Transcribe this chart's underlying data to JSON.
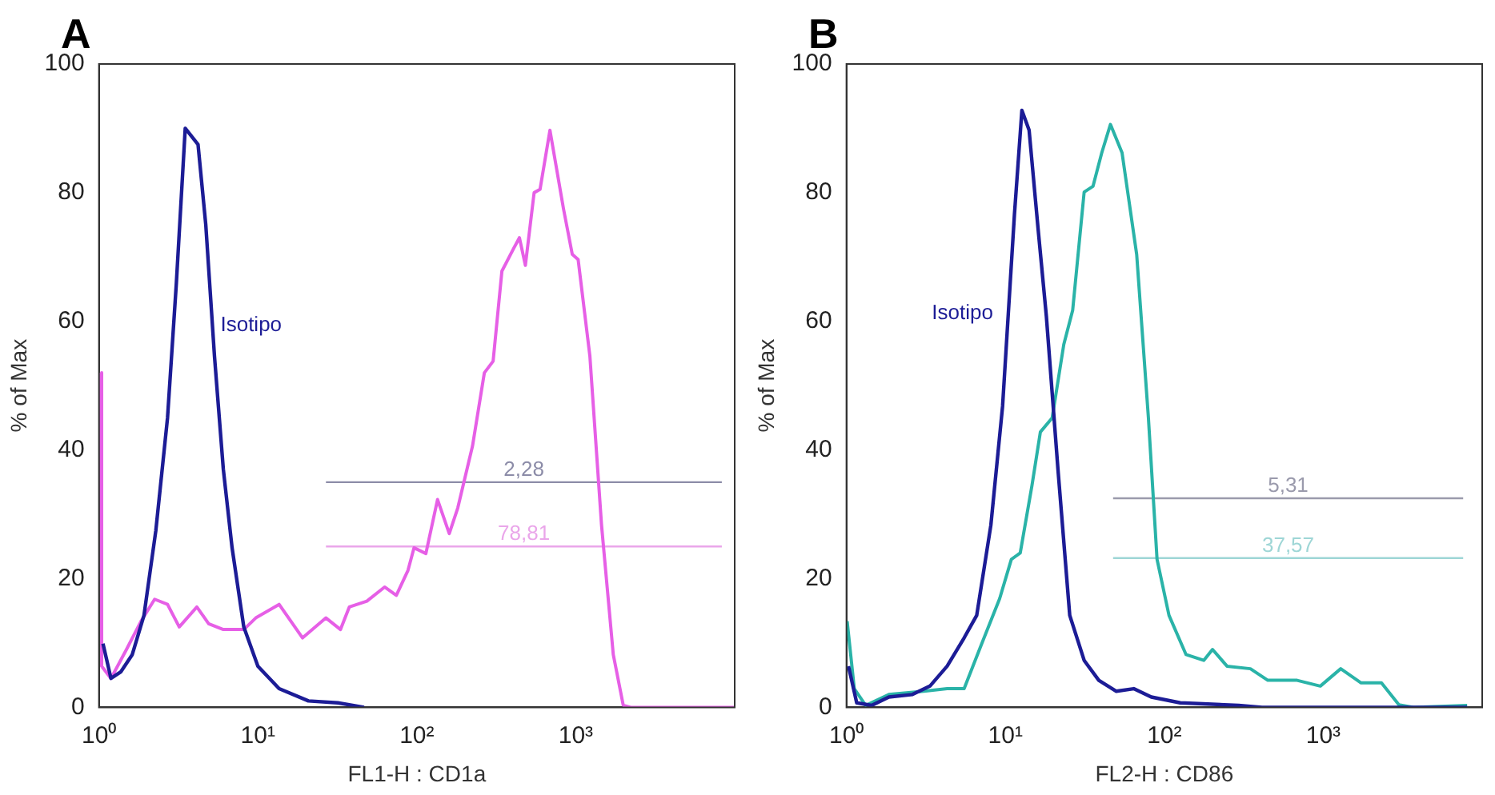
{
  "chart_data": [
    {
      "type": "line",
      "title": "A",
      "xlabel": "FL1-H : CD1a",
      "ylabel": "% of Max",
      "log": "x",
      "xlim": [
        1,
        10000
      ],
      "ylim": [
        0,
        100
      ],
      "xticks": [
        {
          "value": 1,
          "label": "10⁰"
        },
        {
          "value": 10,
          "label": "10¹"
        },
        {
          "value": 100,
          "label": "10²"
        },
        {
          "value": 1000,
          "label": "10³"
        }
      ],
      "yticks": [
        0,
        20,
        40,
        60,
        80,
        100
      ],
      "series": [
        {
          "name": "Isotipo",
          "color": "#1c1c96",
          "x": [
            1.06,
            1.19,
            1.37,
            1.62,
            1.92,
            2.28,
            2.7,
            3.07,
            3.49,
            4.2,
            4.7,
            5.33,
            6.06,
            6.88,
            8.15,
            10,
            13.6,
            20.8,
            31.8,
            46.6
          ],
          "values": [
            9.9,
            4.5,
            5.5,
            8.2,
            14.3,
            27.5,
            45,
            66,
            90,
            87.5,
            75,
            54.6,
            37,
            24.8,
            12.5,
            6.4,
            2.9,
            1,
            0.7,
            0
          ]
        },
        {
          "color": "#e65fe6",
          "x": [
            1.03,
            1.04,
            1.19,
            1.49,
            1.84,
            2.24,
            2.7,
            3.2,
            4.13,
            4.9,
            6.06,
            8.15,
            9.7,
            13.6,
            19.1,
            26.8,
            33.1,
            37.6,
            48.5,
            62.7,
            74.3,
            88,
            96,
            114,
            135,
            160,
            181,
            224,
            266,
            302,
            343,
            406,
            442,
            482,
            547,
            596,
            688,
            837,
            951,
            1035,
            1227,
            1453,
            1722,
            1990,
            2222,
            10000
          ],
          "values": [
            52,
            6.4,
            4.5,
            9,
            13.4,
            16.8,
            16,
            12.5,
            15.6,
            13,
            12.1,
            12.1,
            13.9,
            16,
            10.8,
            13.9,
            12.1,
            15.6,
            16.5,
            18.7,
            17.4,
            21.3,
            24.8,
            23.9,
            32.3,
            27,
            31,
            40.6,
            52,
            53.8,
            67.8,
            71.3,
            73,
            68.7,
            80,
            80.5,
            89.7,
            77.5,
            70.4,
            69.6,
            54.6,
            28.3,
            8.2,
            0.3,
            0,
            0
          ]
        },
        {
          "color": "#8c8ca8",
          "x": [
            26.8,
            8300
          ],
          "values": [
            35,
            35
          ]
        },
        {
          "color": "#eaa6ea",
          "x": [
            26.8,
            8300
          ],
          "values": [
            25,
            25
          ]
        }
      ],
      "annotations": [
        "2,28",
        "78,81"
      ]
    },
    {
      "type": "line",
      "title": "B",
      "xlabel": "FL2-H : CD86",
      "ylabel": "% of Max",
      "log": "x",
      "xlim": [
        1,
        10000
      ],
      "ylim": [
        0,
        100
      ],
      "xticks": [
        {
          "value": 1,
          "label": "10⁰"
        },
        {
          "value": 10,
          "label": "10¹"
        },
        {
          "value": 100,
          "label": "10²"
        },
        {
          "value": 1000,
          "label": "10³"
        }
      ],
      "yticks": [
        0,
        20,
        40,
        60,
        80,
        100
      ],
      "series": [
        {
          "name": "Isotipo",
          "color": "#1c1c96",
          "x": [
            1.03,
            1.16,
            1.44,
            1.85,
            2.6,
            3.35,
            4.3,
            5.5,
            6.6,
            8.1,
            9.6,
            11.4,
            12.7,
            14.1,
            16,
            18.1,
            21.4,
            25.4,
            31.3,
            38.7,
            49.9,
            64.2,
            82.8,
            126,
            294,
            412,
            8040
          ],
          "values": [
            6.4,
            0.7,
            0.3,
            1.6,
            2,
            3.3,
            6.4,
            10.8,
            14.3,
            28.3,
            46.8,
            76.6,
            92.8,
            89.7,
            74.8,
            60.8,
            37.1,
            14.3,
            7.3,
            4.2,
            2.5,
            2.9,
            1.6,
            0.7,
            0.3,
            0,
            0
          ]
        },
        {
          "color": "#2ab3a8",
          "x": [
            1.01,
            1.12,
            1.32,
            1.85,
            3.07,
            4.3,
            5.5,
            7.1,
            9.2,
            10.9,
            12.4,
            14.7,
            16.6,
            19.7,
            23.3,
            26.5,
            31.3,
            35.6,
            40.4,
            45.8,
            54.2,
            67,
            79.4,
            90,
            107,
            137,
            177,
            201,
            248,
            348,
            448,
            684,
            958,
            1288,
            1730,
            2323,
            2994,
            3700,
            8040
          ],
          "values": [
            13.4,
            2.9,
            0.3,
            2,
            2.5,
            2.9,
            2.9,
            9.9,
            16.9,
            23,
            24,
            34.5,
            42.8,
            45,
            56.4,
            61.7,
            80.1,
            81,
            86.2,
            90.6,
            86.2,
            70.4,
            45,
            23,
            14.3,
            8.2,
            7.3,
            9,
            6.4,
            6,
            4.2,
            4.2,
            3.3,
            6,
            3.8,
            3.8,
            0.4,
            0,
            0.3
          ]
        },
        {
          "color": "#9a9aac",
          "x": [
            47.6,
            7590
          ],
          "values": [
            32.5,
            32.5
          ]
        },
        {
          "color": "#9ed6d6",
          "x": [
            47.6,
            7590
          ],
          "values": [
            23.2,
            23.2
          ]
        }
      ],
      "annotations": [
        "5,31",
        "37,57"
      ]
    }
  ]
}
